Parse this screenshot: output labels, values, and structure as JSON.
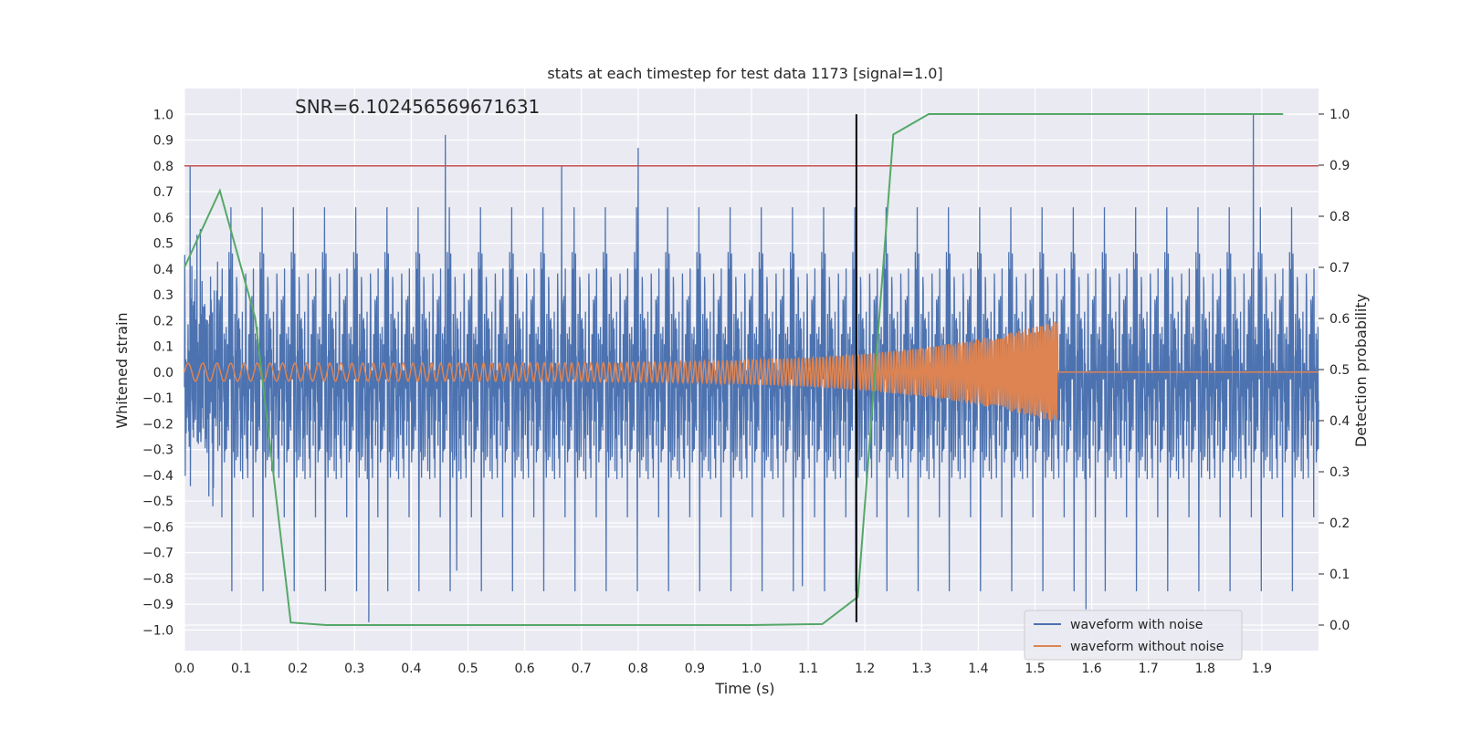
{
  "chart_data": {
    "type": "line",
    "title": "stats at each timestep for test data 1173 [signal=1.0]",
    "xlabel": "Time (s)",
    "ylabel": "Whitened strain",
    "ylabel_right": "Detection probability",
    "annotation": "SNR=6.102456569671631",
    "xlim": [
      0.0,
      2.0
    ],
    "ylim": [
      -1.08,
      1.1
    ],
    "ylim_right": [
      -0.05,
      1.05
    ],
    "x_ticks": [
      0.0,
      0.1,
      0.2,
      0.3,
      0.4,
      0.5,
      0.6,
      0.7,
      0.8,
      0.9,
      1.0,
      1.1,
      1.2,
      1.3,
      1.4,
      1.5,
      1.6,
      1.7,
      1.8,
      1.9
    ],
    "x_tick_labels": [
      "0.0",
      "0.1",
      "0.2",
      "0.3",
      "0.4",
      "0.5",
      "0.6",
      "0.7",
      "0.8",
      "0.9",
      "1.0",
      "1.1",
      "1.2",
      "1.3",
      "1.4",
      "1.5",
      "1.6",
      "1.7",
      "1.8",
      "1.9"
    ],
    "y_ticks": [
      -1.0,
      -0.9,
      -0.8,
      -0.7,
      -0.6,
      -0.5,
      -0.4,
      -0.3,
      -0.2,
      -0.1,
      0.0,
      0.1,
      0.2,
      0.3,
      0.4,
      0.5,
      0.6,
      0.7,
      0.8,
      0.9,
      1.0
    ],
    "y_tick_labels": [
      "−1.0",
      "−0.9",
      "−0.8",
      "−0.7",
      "−0.6",
      "−0.5",
      "−0.4",
      "−0.3",
      "−0.2",
      "−0.1",
      "0.0",
      "0.1",
      "0.2",
      "0.3",
      "0.4",
      "0.5",
      "0.6",
      "0.7",
      "0.8",
      "0.9",
      "1.0"
    ],
    "y_right_ticks": [
      0.0,
      0.1,
      0.2,
      0.3,
      0.4,
      0.5,
      0.6,
      0.7,
      0.8,
      0.9,
      1.0
    ],
    "y_right_tick_labels": [
      "0.0",
      "0.1",
      "0.2",
      "0.3",
      "0.4",
      "0.5",
      "0.6",
      "0.7",
      "0.8",
      "0.9",
      "1.0"
    ],
    "grid": true,
    "legend_placement": "lower-right",
    "threshold_line": {
      "axis": "left",
      "y": 0.8,
      "color": "#c44e52"
    },
    "vertical_line": {
      "x": 1.185,
      "y_range": [
        -0.97,
        1.0
      ],
      "color": "#000000"
    },
    "series": [
      {
        "name": "waveform with noise",
        "color": "#4c72b0",
        "axis": "left",
        "kind": "noise",
        "sample_count": 4000,
        "amplitude_max": 1.0,
        "amplitude_min": -0.97
      },
      {
        "name": "waveform without noise",
        "color": "#dd8452",
        "axis": "left",
        "kind": "chirp",
        "x_end": 1.54,
        "amplitude_start": 0.035,
        "amplitude_end": 0.2
      },
      {
        "name": "detection probability",
        "color": "#55a868",
        "axis": "right",
        "x": [
          0.0,
          0.0625,
          0.125,
          0.1875,
          0.25,
          0.3125,
          1.0,
          1.125,
          1.1875,
          1.25,
          1.3125,
          1.375,
          1.9375
        ],
        "y": [
          0.7,
          0.85,
          0.6,
          0.005,
          0.0,
          0.0,
          0.0,
          0.002,
          0.055,
          0.96,
          1.0,
          1.0,
          1.0
        ]
      }
    ]
  }
}
